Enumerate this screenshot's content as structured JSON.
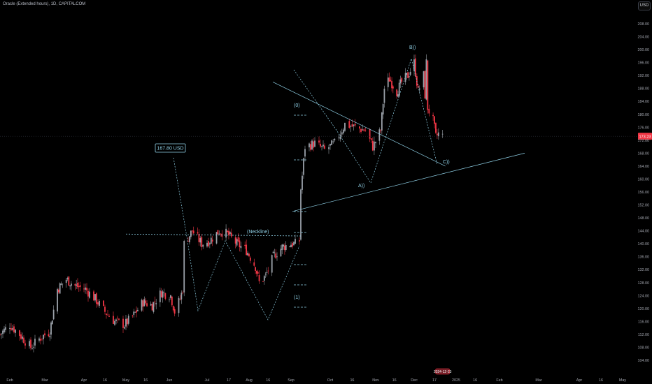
{
  "header": {
    "title": "Oracle (Extended hours), 1D, CAPITALCOM"
  },
  "currency_button": "USD",
  "colors": {
    "up": "#9aa0a8",
    "down": "#f23645",
    "annotation": "#8fd0e6",
    "price_label_bg": "#f23645"
  },
  "chart_data": {
    "type": "candlestick",
    "ylim": [
      104,
      212
    ],
    "y_ticks": [
      "208.00",
      "204.00",
      "200.00",
      "196.00",
      "192.00",
      "188.00",
      "184.00",
      "180.00",
      "176.00",
      "172.00",
      "168.00",
      "164.00",
      "160.00",
      "156.00",
      "152.00",
      "148.00",
      "144.00",
      "140.00",
      "136.00",
      "132.00",
      "128.00",
      "124.00",
      "120.00",
      "116.00",
      "112.00",
      "108.00",
      "104.00"
    ],
    "x_ticks": [
      "Feb",
      "Mar",
      "Apr",
      "16",
      "May",
      "16",
      "Jun",
      "Jul",
      "17",
      "Aug",
      "16",
      "Sep",
      "Oct",
      "16",
      "Nov",
      "16",
      "Dec",
      "17",
      "2025",
      "16",
      "Feb",
      "Mar",
      "Apr",
      "16",
      "May"
    ],
    "current_price": "173.23",
    "current_price_value": 173.23,
    "date_marker": "2024-12-23",
    "target_label": "167.80 USD",
    "wave_labels": [
      "(Neckline)",
      "(0)",
      "(1)",
      "A))",
      "B))",
      "C))"
    ],
    "price_path": [
      {
        "date": "2024-01-29",
        "close": 112
      },
      {
        "date": "2024-02-05",
        "close": 115
      },
      {
        "date": "2024-02-12",
        "close": 112
      },
      {
        "date": "2024-02-20",
        "close": 108
      },
      {
        "date": "2024-02-27",
        "close": 111
      },
      {
        "date": "2024-03-05",
        "close": 113
      },
      {
        "date": "2024-03-11",
        "close": 126
      },
      {
        "date": "2024-03-18",
        "close": 129
      },
      {
        "date": "2024-03-25",
        "close": 127
      },
      {
        "date": "2024-04-02",
        "close": 126
      },
      {
        "date": "2024-04-09",
        "close": 123
      },
      {
        "date": "2024-04-16",
        "close": 119
      },
      {
        "date": "2024-04-23",
        "close": 116
      },
      {
        "date": "2024-04-30",
        "close": 115
      },
      {
        "date": "2024-05-07",
        "close": 118
      },
      {
        "date": "2024-05-14",
        "close": 122
      },
      {
        "date": "2024-05-21",
        "close": 121
      },
      {
        "date": "2024-05-28",
        "close": 125
      },
      {
        "date": "2024-06-04",
        "close": 124
      },
      {
        "date": "2024-06-07",
        "close": 119
      },
      {
        "date": "2024-06-11",
        "close": 123
      },
      {
        "date": "2024-06-13",
        "close": 126
      },
      {
        "date": "2024-06-14",
        "close": 140
      },
      {
        "date": "2024-06-20",
        "close": 144
      },
      {
        "date": "2024-06-27",
        "close": 140
      },
      {
        "date": "2024-07-03",
        "close": 141
      },
      {
        "date": "2024-07-10",
        "close": 144
      },
      {
        "date": "2024-07-16",
        "close": 143
      },
      {
        "date": "2024-07-23",
        "close": 140
      },
      {
        "date": "2024-07-30",
        "close": 138
      },
      {
        "date": "2024-08-06",
        "close": 133
      },
      {
        "date": "2024-08-09",
        "close": 128
      },
      {
        "date": "2024-08-14",
        "close": 130
      },
      {
        "date": "2024-08-20",
        "close": 136
      },
      {
        "date": "2024-08-27",
        "close": 139
      },
      {
        "date": "2024-09-03",
        "close": 140
      },
      {
        "date": "2024-09-06",
        "close": 140
      },
      {
        "date": "2024-09-09",
        "close": 141
      },
      {
        "date": "2024-09-10",
        "close": 157
      },
      {
        "date": "2024-09-11",
        "close": 161
      },
      {
        "date": "2024-09-13",
        "close": 170
      },
      {
        "date": "2024-09-20",
        "close": 171
      },
      {
        "date": "2024-09-27",
        "close": 169
      },
      {
        "date": "2024-10-04",
        "close": 171
      },
      {
        "date": "2024-10-11",
        "close": 177
      },
      {
        "date": "2024-10-18",
        "close": 176
      },
      {
        "date": "2024-10-25",
        "close": 175
      },
      {
        "date": "2024-10-30",
        "close": 170
      },
      {
        "date": "2024-11-05",
        "close": 175
      },
      {
        "date": "2024-11-08",
        "close": 188
      },
      {
        "date": "2024-11-12",
        "close": 191
      },
      {
        "date": "2024-11-18",
        "close": 187
      },
      {
        "date": "2024-11-22",
        "close": 190
      },
      {
        "date": "2024-11-27",
        "close": 192
      },
      {
        "date": "2024-12-02",
        "close": 196
      },
      {
        "date": "2024-12-05",
        "close": 187
      },
      {
        "date": "2024-12-09",
        "close": 192
      },
      {
        "date": "2024-12-10",
        "close": 186
      },
      {
        "date": "2024-12-11",
        "close": 196
      },
      {
        "date": "2024-12-12",
        "close": 182
      },
      {
        "date": "2024-12-16",
        "close": 178
      },
      {
        "date": "2024-12-18",
        "close": 173
      },
      {
        "date": "2024-12-20",
        "close": 174
      },
      {
        "date": "2024-12-23",
        "close": 173.23
      }
    ],
    "drawings": {
      "neckline_price": 143,
      "lower_trendline": [
        {
          "date": "2024-09-04",
          "price": 150
        },
        {
          "date": "2025-02-21",
          "price": 168
        }
      ],
      "upper_trendline": [
        {
          "date": "2024-09-20",
          "price": 186
        },
        {
          "date": "2024-12-25",
          "price": 164
        }
      ]
    }
  }
}
